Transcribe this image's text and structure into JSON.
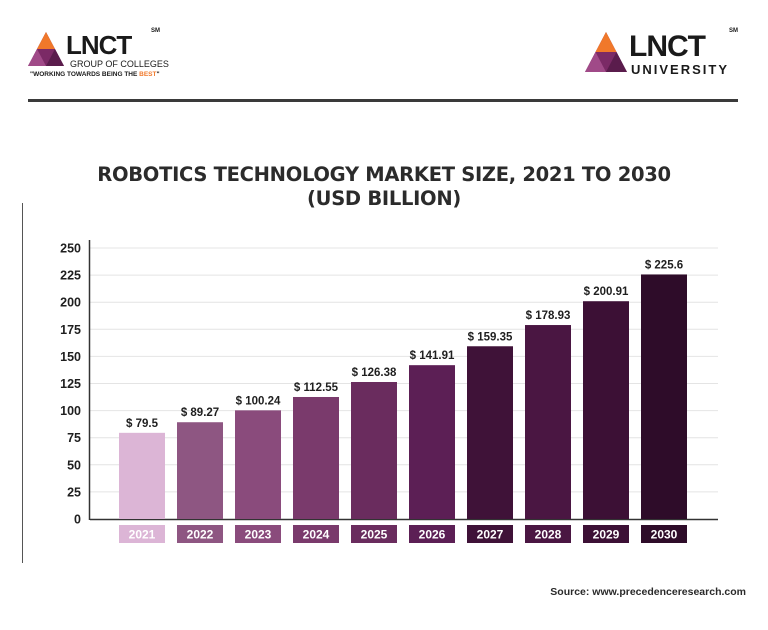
{
  "logos": {
    "left": {
      "mark": "LNCT",
      "sm": "SM",
      "subtitle": "GROUP OF COLLEGES",
      "tagline_prefix": "\"WORKING TOWARDS BEING THE ",
      "tagline_highlight": "BEST",
      "tagline_suffix": "\""
    },
    "right": {
      "mark": "LNCT",
      "sm": "SM",
      "subtitle": "UNIVERSITY"
    }
  },
  "title_line1": "ROBOTICS TECHNOLOGY MARKET SIZE, 2021 TO 2030",
  "title_line2": "(USD BILLION)",
  "source": "Source: www.precedenceresearch.com",
  "colors": {
    "accent": "#f0782a",
    "logo_purple": "#7b2a66",
    "logo_orange": "#f0782a"
  },
  "chart_data": {
    "type": "bar",
    "title": "ROBOTICS TECHNOLOGY MARKET SIZE, 2021 TO 2030 (USD BILLION)",
    "categories": [
      "2021",
      "2022",
      "2023",
      "2024",
      "2025",
      "2026",
      "2027",
      "2028",
      "2029",
      "2030"
    ],
    "values": [
      79.5,
      89.27,
      100.24,
      112.55,
      126.38,
      141.91,
      159.35,
      178.93,
      200.91,
      225.6
    ],
    "data_labels": [
      "$ 79.5",
      "$ 89.27",
      "$ 100.24",
      "$ 112.55",
      "$ 126.38",
      "$ 141.91",
      "$ 159.35",
      "$ 178.93",
      "$ 200.91",
      "$ 225.6"
    ],
    "ylim": [
      0,
      250
    ],
    "yticks": [
      0,
      25,
      50,
      75,
      100,
      125,
      150,
      175,
      200,
      225,
      250
    ],
    "grid": true,
    "xlabel": "",
    "ylabel": "",
    "bar_colors": [
      "#dcb5d6",
      "#8e5682",
      "#8a4b7c",
      "#7a3a6c",
      "#6a2c5e",
      "#5c1f55",
      "#3f1238",
      "#4a1642",
      "#3c1035",
      "#2e0c29"
    ]
  }
}
